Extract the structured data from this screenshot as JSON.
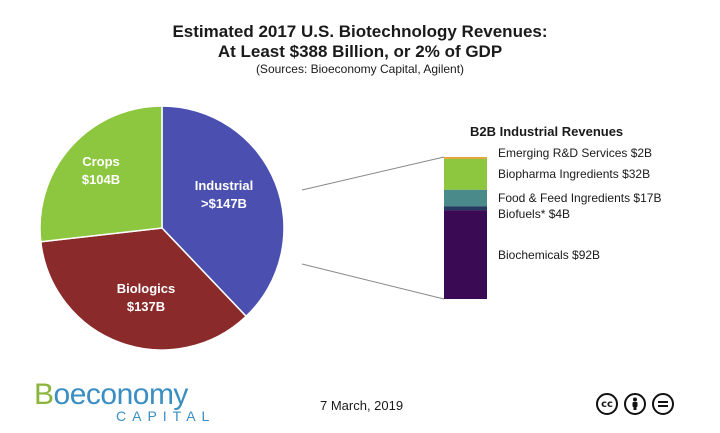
{
  "title_line1": "Estimated 2017 U.S. Biotechnology Revenues:",
  "title_line2": "At Least $388 Billion, or 2% of GDP",
  "subtitle": "(Sources: Bioeconomy Capital, Agilent)",
  "date": "7 March, 2019",
  "logo": {
    "main_prefix": "B",
    "main_rest": "oeconomy",
    "sub": "CAPITAL"
  },
  "license_icons": [
    "cc-icon",
    "attribution-icon",
    "no-derivatives-icon"
  ],
  "chart_data": [
    {
      "type": "pie",
      "slices": [
        {
          "name": "Industrial",
          "label_line1": "Industrial",
          "label_line2": ">$147B",
          "value": 147,
          "color": "#4a4fb0"
        },
        {
          "name": "Biologics",
          "label_line1": "Biologics",
          "label_line2": "$137B",
          "value": 137,
          "color": "#8b2a2a"
        },
        {
          "name": "Crops",
          "label_line1": "Crops",
          "label_line2": "$104B",
          "value": 104,
          "color": "#8dc63f"
        }
      ]
    },
    {
      "type": "bar",
      "title": "B2B Industrial Revenues",
      "stacked": true,
      "segments": [
        {
          "name": "Emerging R&D Services",
          "label": "Emerging R&D Services $2B",
          "value": 2,
          "color": "#e8a33a"
        },
        {
          "name": "Biopharma Ingredients",
          "label": "Biopharma Ingredients $32B",
          "value": 32,
          "color": "#8dc63f"
        },
        {
          "name": "Food & Feed Ingredients",
          "label": "Food & Feed Ingredients $17B",
          "value": 17,
          "color": "#4a8a8a"
        },
        {
          "name": "Biofuels*",
          "label": "Biofuels* $4B",
          "value": 4,
          "color": "#23395e"
        },
        {
          "name": "Biochemicals",
          "label": "Biochemicals $92B",
          "value": 92,
          "color": "#3a0a55"
        }
      ]
    }
  ]
}
